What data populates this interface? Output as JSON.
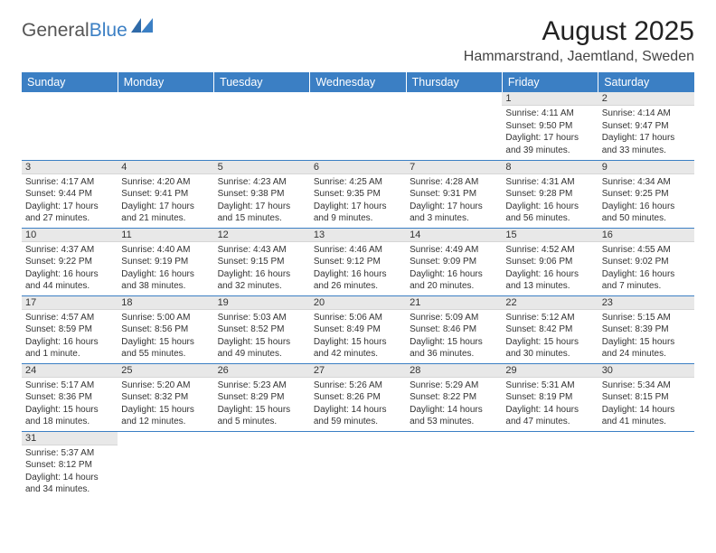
{
  "logo": {
    "part1": "General",
    "part2": "Blue"
  },
  "title": "August 2025",
  "location": "Hammarstrand, Jaemtland, Sweden",
  "colors": {
    "brand_blue": "#3b7fc4",
    "header_text": "#ffffff",
    "daybar_bg": "#e8e8e8",
    "text": "#333333",
    "background": "#ffffff"
  },
  "calendar": {
    "type": "table",
    "days_of_week": [
      "Sunday",
      "Monday",
      "Tuesday",
      "Wednesday",
      "Thursday",
      "Friday",
      "Saturday"
    ],
    "col_width_pct": 14.28,
    "header_fontsize": 12.5,
    "daynum_fontsize": 11,
    "body_fontsize": 10,
    "weeks": [
      [
        {
          "blank": true
        },
        {
          "blank": true
        },
        {
          "blank": true
        },
        {
          "blank": true
        },
        {
          "blank": true
        },
        {
          "num": "1",
          "l1": "Sunrise: 4:11 AM",
          "l2": "Sunset: 9:50 PM",
          "l3": "Daylight: 17 hours",
          "l4": "and 39 minutes."
        },
        {
          "num": "2",
          "l1": "Sunrise: 4:14 AM",
          "l2": "Sunset: 9:47 PM",
          "l3": "Daylight: 17 hours",
          "l4": "and 33 minutes."
        }
      ],
      [
        {
          "num": "3",
          "l1": "Sunrise: 4:17 AM",
          "l2": "Sunset: 9:44 PM",
          "l3": "Daylight: 17 hours",
          "l4": "and 27 minutes."
        },
        {
          "num": "4",
          "l1": "Sunrise: 4:20 AM",
          "l2": "Sunset: 9:41 PM",
          "l3": "Daylight: 17 hours",
          "l4": "and 21 minutes."
        },
        {
          "num": "5",
          "l1": "Sunrise: 4:23 AM",
          "l2": "Sunset: 9:38 PM",
          "l3": "Daylight: 17 hours",
          "l4": "and 15 minutes."
        },
        {
          "num": "6",
          "l1": "Sunrise: 4:25 AM",
          "l2": "Sunset: 9:35 PM",
          "l3": "Daylight: 17 hours",
          "l4": "and 9 minutes."
        },
        {
          "num": "7",
          "l1": "Sunrise: 4:28 AM",
          "l2": "Sunset: 9:31 PM",
          "l3": "Daylight: 17 hours",
          "l4": "and 3 minutes."
        },
        {
          "num": "8",
          "l1": "Sunrise: 4:31 AM",
          "l2": "Sunset: 9:28 PM",
          "l3": "Daylight: 16 hours",
          "l4": "and 56 minutes."
        },
        {
          "num": "9",
          "l1": "Sunrise: 4:34 AM",
          "l2": "Sunset: 9:25 PM",
          "l3": "Daylight: 16 hours",
          "l4": "and 50 minutes."
        }
      ],
      [
        {
          "num": "10",
          "l1": "Sunrise: 4:37 AM",
          "l2": "Sunset: 9:22 PM",
          "l3": "Daylight: 16 hours",
          "l4": "and 44 minutes."
        },
        {
          "num": "11",
          "l1": "Sunrise: 4:40 AM",
          "l2": "Sunset: 9:19 PM",
          "l3": "Daylight: 16 hours",
          "l4": "and 38 minutes."
        },
        {
          "num": "12",
          "l1": "Sunrise: 4:43 AM",
          "l2": "Sunset: 9:15 PM",
          "l3": "Daylight: 16 hours",
          "l4": "and 32 minutes."
        },
        {
          "num": "13",
          "l1": "Sunrise: 4:46 AM",
          "l2": "Sunset: 9:12 PM",
          "l3": "Daylight: 16 hours",
          "l4": "and 26 minutes."
        },
        {
          "num": "14",
          "l1": "Sunrise: 4:49 AM",
          "l2": "Sunset: 9:09 PM",
          "l3": "Daylight: 16 hours",
          "l4": "and 20 minutes."
        },
        {
          "num": "15",
          "l1": "Sunrise: 4:52 AM",
          "l2": "Sunset: 9:06 PM",
          "l3": "Daylight: 16 hours",
          "l4": "and 13 minutes."
        },
        {
          "num": "16",
          "l1": "Sunrise: 4:55 AM",
          "l2": "Sunset: 9:02 PM",
          "l3": "Daylight: 16 hours",
          "l4": "and 7 minutes."
        }
      ],
      [
        {
          "num": "17",
          "l1": "Sunrise: 4:57 AM",
          "l2": "Sunset: 8:59 PM",
          "l3": "Daylight: 16 hours",
          "l4": "and 1 minute."
        },
        {
          "num": "18",
          "l1": "Sunrise: 5:00 AM",
          "l2": "Sunset: 8:56 PM",
          "l3": "Daylight: 15 hours",
          "l4": "and 55 minutes."
        },
        {
          "num": "19",
          "l1": "Sunrise: 5:03 AM",
          "l2": "Sunset: 8:52 PM",
          "l3": "Daylight: 15 hours",
          "l4": "and 49 minutes."
        },
        {
          "num": "20",
          "l1": "Sunrise: 5:06 AM",
          "l2": "Sunset: 8:49 PM",
          "l3": "Daylight: 15 hours",
          "l4": "and 42 minutes."
        },
        {
          "num": "21",
          "l1": "Sunrise: 5:09 AM",
          "l2": "Sunset: 8:46 PM",
          "l3": "Daylight: 15 hours",
          "l4": "and 36 minutes."
        },
        {
          "num": "22",
          "l1": "Sunrise: 5:12 AM",
          "l2": "Sunset: 8:42 PM",
          "l3": "Daylight: 15 hours",
          "l4": "and 30 minutes."
        },
        {
          "num": "23",
          "l1": "Sunrise: 5:15 AM",
          "l2": "Sunset: 8:39 PM",
          "l3": "Daylight: 15 hours",
          "l4": "and 24 minutes."
        }
      ],
      [
        {
          "num": "24",
          "l1": "Sunrise: 5:17 AM",
          "l2": "Sunset: 8:36 PM",
          "l3": "Daylight: 15 hours",
          "l4": "and 18 minutes."
        },
        {
          "num": "25",
          "l1": "Sunrise: 5:20 AM",
          "l2": "Sunset: 8:32 PM",
          "l3": "Daylight: 15 hours",
          "l4": "and 12 minutes."
        },
        {
          "num": "26",
          "l1": "Sunrise: 5:23 AM",
          "l2": "Sunset: 8:29 PM",
          "l3": "Daylight: 15 hours",
          "l4": "and 5 minutes."
        },
        {
          "num": "27",
          "l1": "Sunrise: 5:26 AM",
          "l2": "Sunset: 8:26 PM",
          "l3": "Daylight: 14 hours",
          "l4": "and 59 minutes."
        },
        {
          "num": "28",
          "l1": "Sunrise: 5:29 AM",
          "l2": "Sunset: 8:22 PM",
          "l3": "Daylight: 14 hours",
          "l4": "and 53 minutes."
        },
        {
          "num": "29",
          "l1": "Sunrise: 5:31 AM",
          "l2": "Sunset: 8:19 PM",
          "l3": "Daylight: 14 hours",
          "l4": "and 47 minutes."
        },
        {
          "num": "30",
          "l1": "Sunrise: 5:34 AM",
          "l2": "Sunset: 8:15 PM",
          "l3": "Daylight: 14 hours",
          "l4": "and 41 minutes."
        }
      ],
      [
        {
          "num": "31",
          "l1": "Sunrise: 5:37 AM",
          "l2": "Sunset: 8:12 PM",
          "l3": "Daylight: 14 hours",
          "l4": "and 34 minutes."
        },
        {
          "blank": true
        },
        {
          "blank": true
        },
        {
          "blank": true
        },
        {
          "blank": true
        },
        {
          "blank": true
        },
        {
          "blank": true
        }
      ]
    ]
  }
}
